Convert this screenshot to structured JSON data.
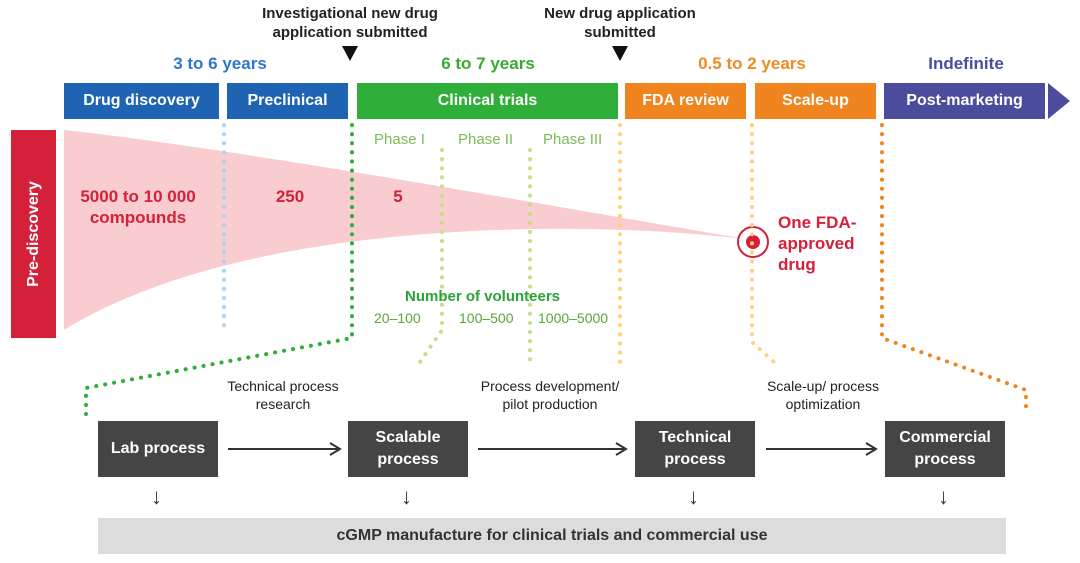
{
  "milestones": {
    "ind": "Investigational new drug application submitted",
    "nda": "New drug application submitted"
  },
  "durations": [
    {
      "label": "3 to 6 years",
      "color": "#2f76c9"
    },
    {
      "label": "6 to 7 years",
      "color": "#3aaa35"
    },
    {
      "label": "0.5 to 2 years",
      "color": "#f08a23"
    },
    {
      "label": "Indefinite",
      "color": "#4a4e9e"
    }
  ],
  "stages": [
    {
      "label": "Drug discovery",
      "color": "#1f64b3"
    },
    {
      "label": "Preclinical",
      "color": "#1f64b3"
    },
    {
      "label": "Clinical trials",
      "color": "#2fae3a"
    },
    {
      "label": "FDA review",
      "color": "#f0841e"
    },
    {
      "label": "Scale-up",
      "color": "#f0841e"
    },
    {
      "label": "Post-marketing",
      "color": "#4b4d9c"
    }
  ],
  "pre_discovery": "Pre-discovery",
  "phases": [
    "Phase I",
    "Phase II",
    "Phase III"
  ],
  "funnel": {
    "compounds": "5000 to 10 000 compounds",
    "preclinical_count": "250",
    "clinical_count": "5",
    "approved": "One FDA-approved drug"
  },
  "volunteers": {
    "title": "Number of volunteers",
    "ranges": [
      "20–100",
      "100–500",
      "1000–5000"
    ]
  },
  "processes": [
    "Lab process",
    "Scalable process",
    "Technical process",
    "Commercial process"
  ],
  "transitions": [
    "Technical process research",
    "Process development/ pilot production",
    "Scale-up/ process optimization"
  ],
  "manufacture": "cGMP manufacture for clinical trials and commercial use"
}
